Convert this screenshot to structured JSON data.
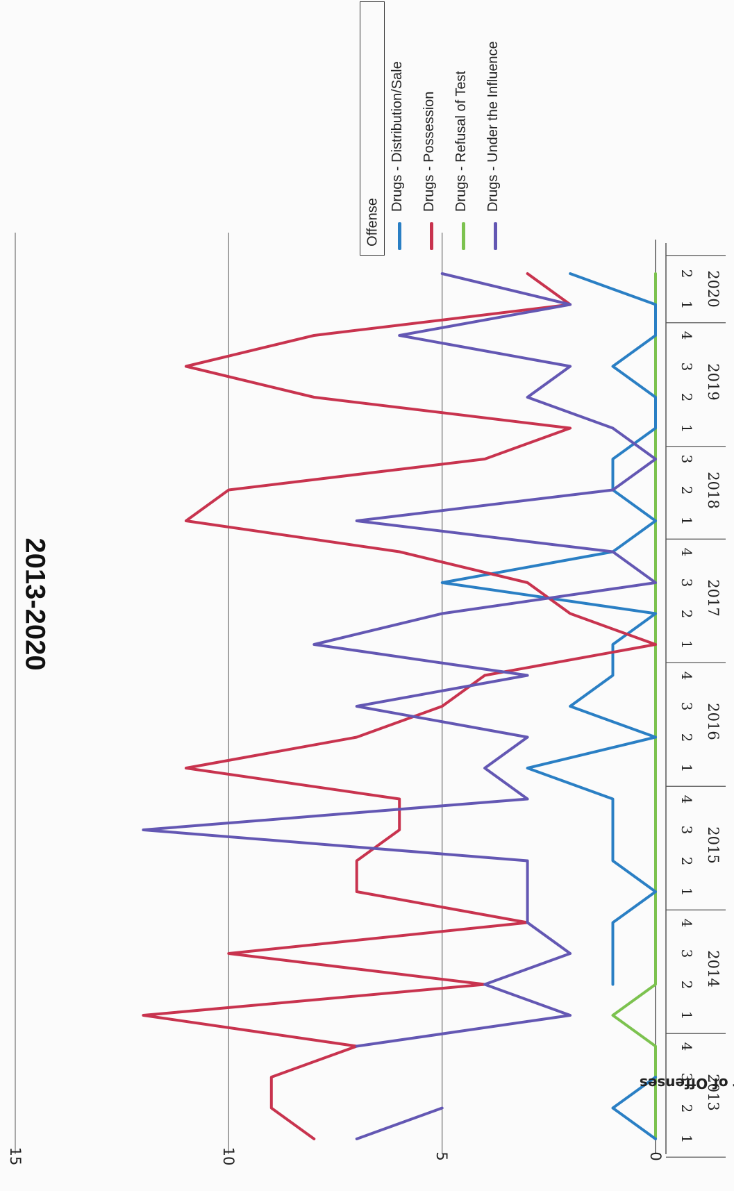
{
  "chart_data": {
    "type": "line",
    "title": "2013-2020",
    "ylabel": "Number of Offenses",
    "xlabel": "",
    "ylim": [
      0,
      15
    ],
    "yticks": [
      "0",
      "5",
      "10",
      "15"
    ],
    "grid": true,
    "orientation": "rotated-90",
    "legend": {
      "title": "Offense",
      "placement": "top-right"
    },
    "years": [
      {
        "label": "2013",
        "quarters": [
          "1",
          "2",
          "3",
          "4"
        ]
      },
      {
        "label": "2014",
        "quarters": [
          "1",
          "2",
          "3",
          "4"
        ]
      },
      {
        "label": "2015",
        "quarters": [
          "1",
          "2",
          "3",
          "4"
        ]
      },
      {
        "label": "2016",
        "quarters": [
          "1",
          "2",
          "3",
          "4"
        ]
      },
      {
        "label": "2017",
        "quarters": [
          "1",
          "2",
          "3",
          "4"
        ]
      },
      {
        "label": "2018",
        "quarters": [
          "1",
          "2",
          "3"
        ]
      },
      {
        "label": "2019",
        "quarters": [
          "1",
          "2",
          "3",
          "4"
        ]
      },
      {
        "label": "2020",
        "quarters": [
          "1",
          "2"
        ]
      }
    ],
    "series": [
      {
        "name": "Drugs - Distribution/Sale",
        "color": "#2a7fc4",
        "values": [
          0,
          1,
          0,
          null,
          null,
          1,
          1,
          1,
          0,
          1,
          1,
          1,
          3,
          0,
          2,
          1,
          1,
          0,
          5,
          1,
          0,
          1,
          1,
          0,
          0,
          1,
          0,
          0,
          2
        ]
      },
      {
        "name": "Drugs - Possession",
        "color": "#c8334e",
        "values": [
          8,
          9,
          9,
          7,
          12,
          4,
          10,
          3,
          7,
          7,
          6,
          6,
          11,
          7,
          5,
          4,
          0,
          2,
          3,
          6,
          11,
          10,
          4,
          2,
          8,
          11,
          8,
          2,
          3
        ]
      },
      {
        "name": "Drugs - Refusal of Test",
        "color": "#7cc24f",
        "values": [
          0,
          0,
          0,
          0,
          1,
          0,
          0,
          0,
          0,
          0,
          0,
          0,
          0,
          0,
          0,
          0,
          0,
          0,
          0,
          0,
          0,
          0,
          0,
          0,
          0,
          0,
          0,
          0,
          0
        ]
      },
      {
        "name": "Drugs - Under the Influence",
        "color": "#6357b3",
        "values": [
          7,
          5,
          null,
          7,
          2,
          4,
          2,
          3,
          3,
          3,
          12,
          3,
          4,
          3,
          7,
          3,
          8,
          5,
          0,
          1,
          7,
          1,
          0,
          1,
          3,
          2,
          6,
          2,
          5
        ]
      }
    ]
  }
}
